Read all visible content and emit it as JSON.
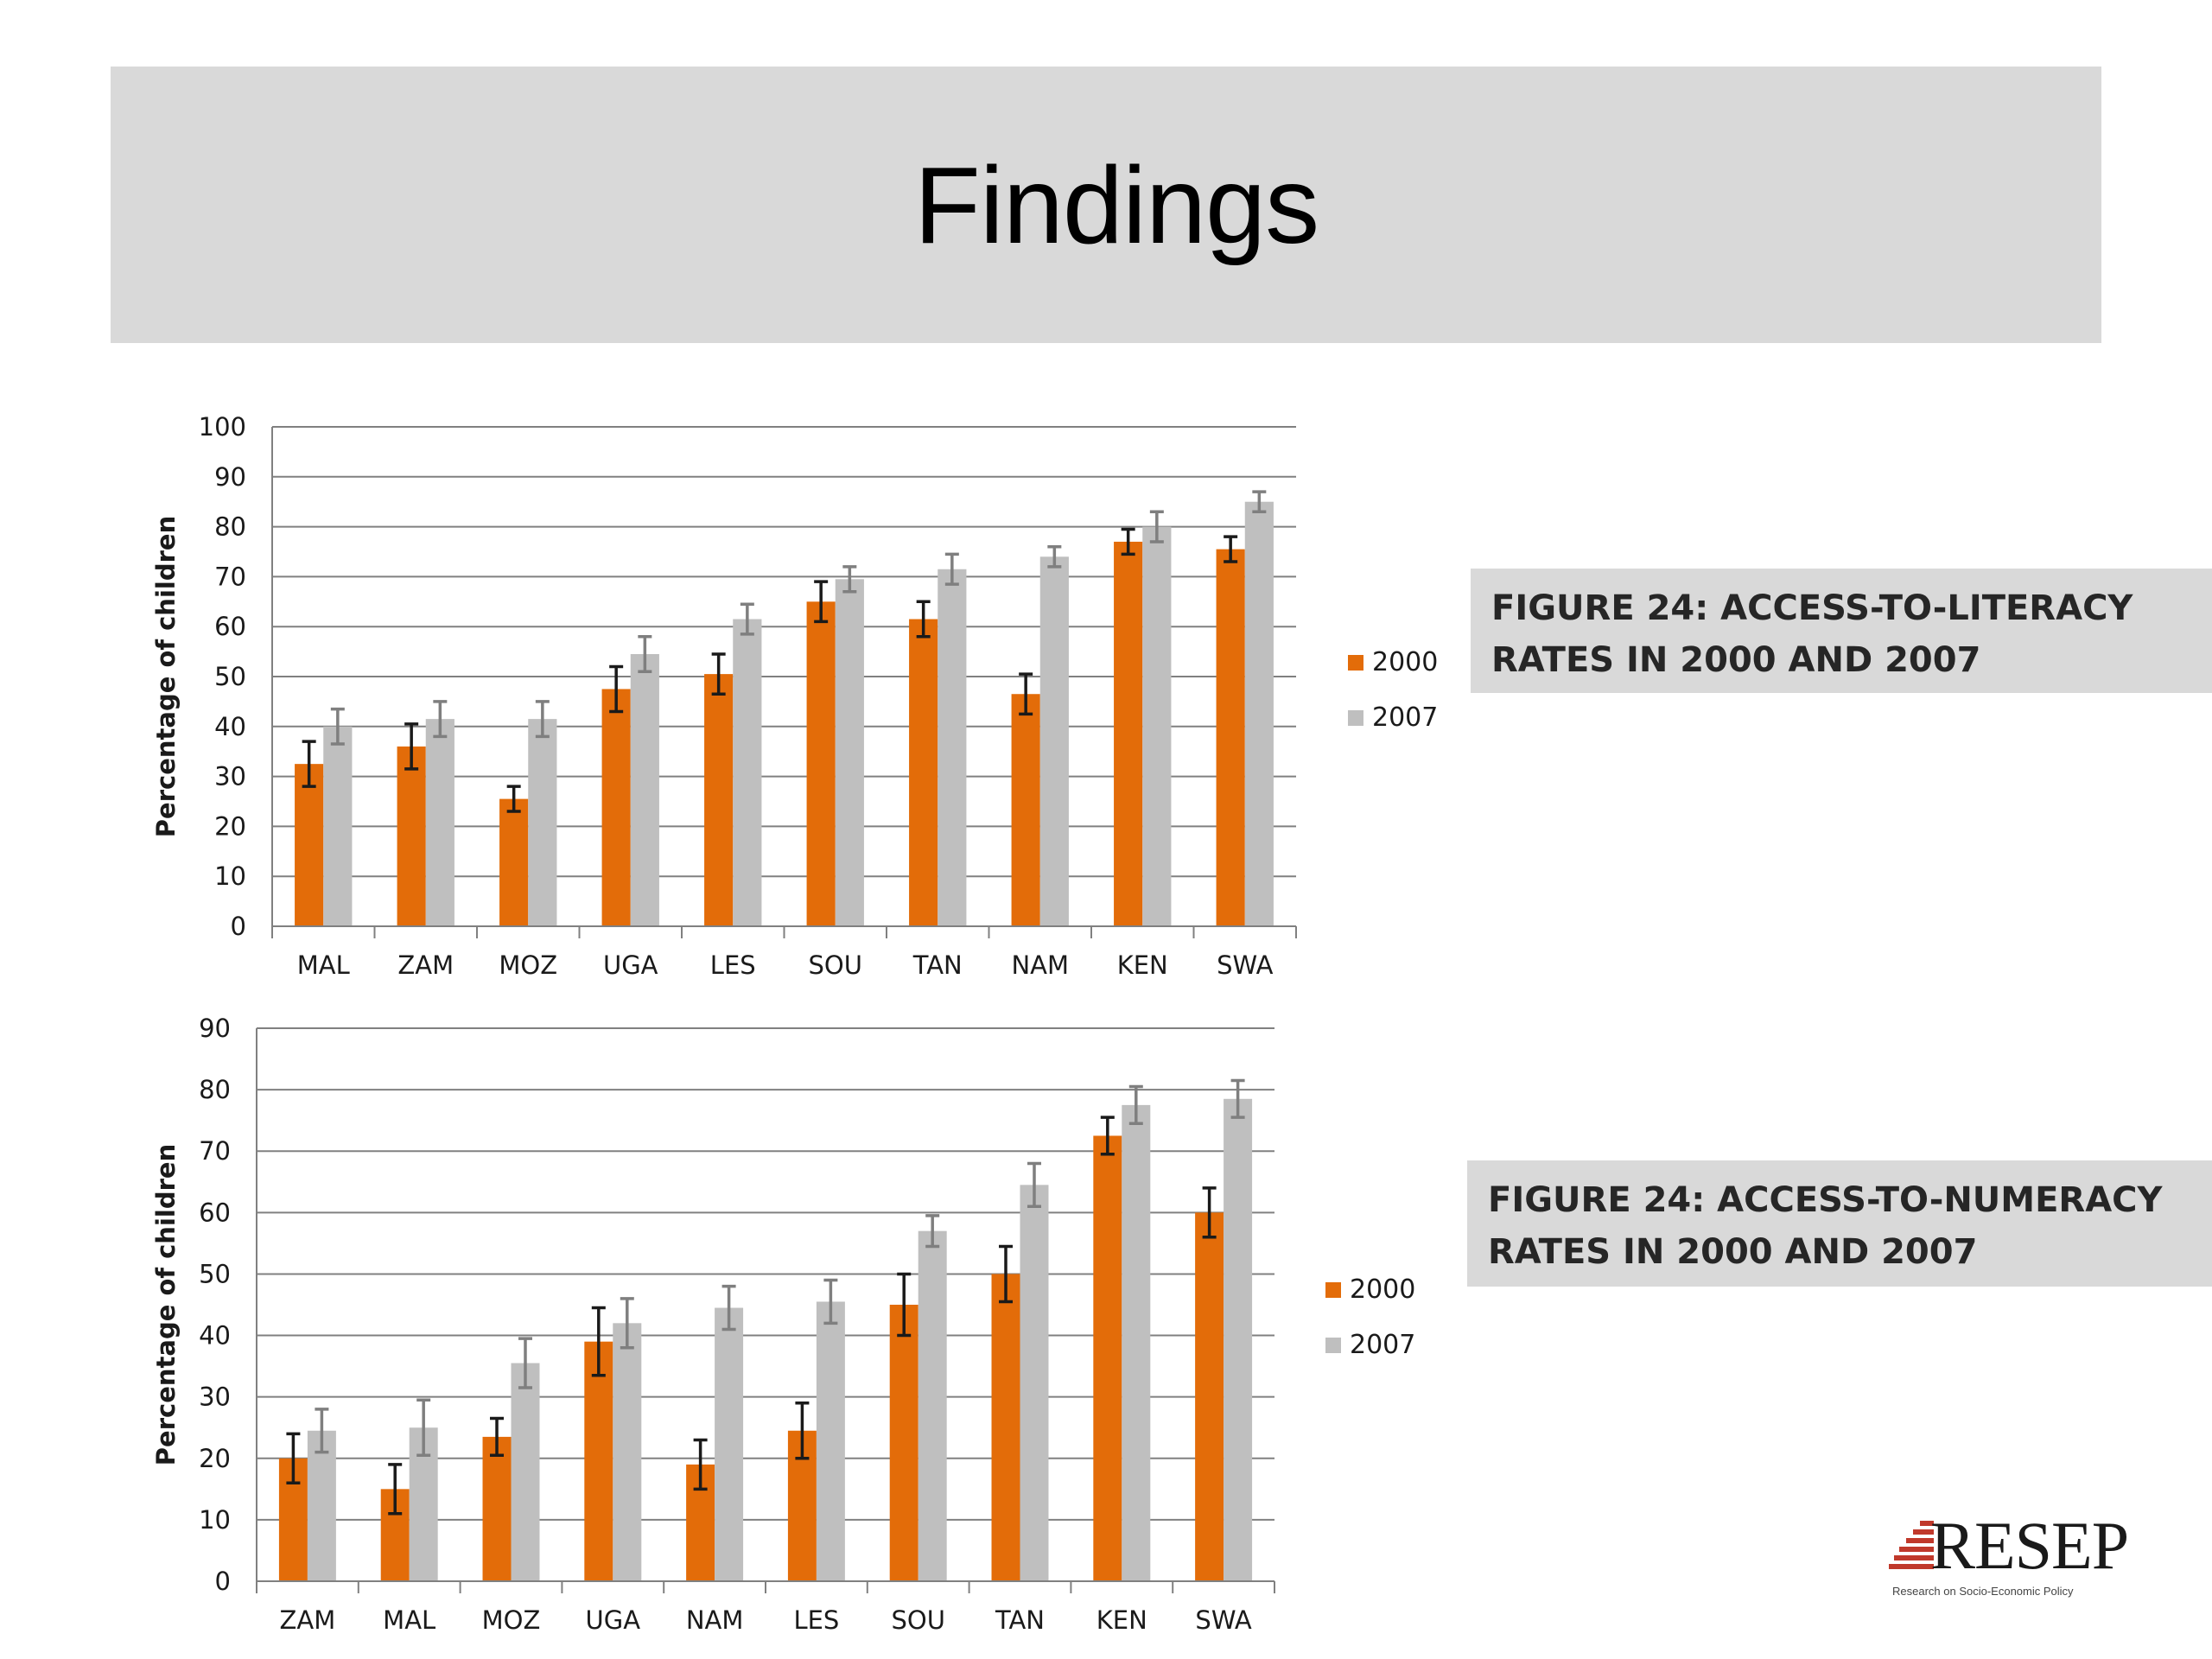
{
  "slide": {
    "title": "Findings"
  },
  "captions": [
    "FIGURE 24: ACCESS-TO-LITERACY RATES IN 2000 AND 2007",
    "FIGURE 24: ACCESS-TO-NUMERACY RATES IN 2000 AND 2007"
  ],
  "logo": {
    "text": "RESEP",
    "subtitle": "Research on Socio-Economic Policy"
  },
  "colors": {
    "series_2000": "#e36c09",
    "series_2007": "#bfbfbf",
    "error_2000": "#1a1a1a",
    "error_2007": "#7f7f7f",
    "grid": "#808080"
  },
  "chart_data": [
    {
      "type": "bar",
      "ylabel": "Percentage of children",
      "ylim": [
        0,
        100
      ],
      "yticks": [
        0,
        10,
        20,
        30,
        40,
        50,
        60,
        70,
        80,
        90,
        100
      ],
      "categories": [
        "MAL",
        "ZAM",
        "MOZ",
        "UGA",
        "LES",
        "SOU",
        "TAN",
        "NAM",
        "KEN",
        "SWA"
      ],
      "series": [
        {
          "name": "2000",
          "values": [
            32.5,
            36,
            25.5,
            47.5,
            50.5,
            65,
            61.5,
            46.5,
            77,
            75.5
          ],
          "err": [
            4.5,
            4.5,
            2.5,
            4.5,
            4,
            4,
            3.5,
            4,
            2.5,
            2.5
          ]
        },
        {
          "name": "2007",
          "values": [
            40,
            41.5,
            41.5,
            54.5,
            61.5,
            69.5,
            71.5,
            74,
            80,
            85
          ],
          "err": [
            3.5,
            3.5,
            3.5,
            3.5,
            3,
            2.5,
            3,
            2,
            3,
            2
          ]
        }
      ],
      "grid": true,
      "legend": "right"
    },
    {
      "type": "bar",
      "ylabel": "Percentage of children",
      "ylim": [
        0,
        90
      ],
      "yticks": [
        0,
        10,
        20,
        30,
        40,
        50,
        60,
        70,
        80,
        90
      ],
      "categories": [
        "ZAM",
        "MAL",
        "MOZ",
        "UGA",
        "NAM",
        "LES",
        "SOU",
        "TAN",
        "KEN",
        "SWA"
      ],
      "series": [
        {
          "name": "2000",
          "values": [
            20,
            15,
            23.5,
            39,
            19,
            24.5,
            45,
            50,
            72.5,
            60
          ],
          "err": [
            4,
            4,
            3,
            5.5,
            4,
            4.5,
            5,
            4.5,
            3,
            4
          ]
        },
        {
          "name": "2007",
          "values": [
            24.5,
            25,
            35.5,
            42,
            44.5,
            45.5,
            57,
            64.5,
            77.5,
            78.5
          ],
          "err": [
            3.5,
            4.5,
            4,
            4,
            3.5,
            3.5,
            2.5,
            3.5,
            3,
            3
          ]
        }
      ],
      "grid": true,
      "legend": "right"
    }
  ]
}
